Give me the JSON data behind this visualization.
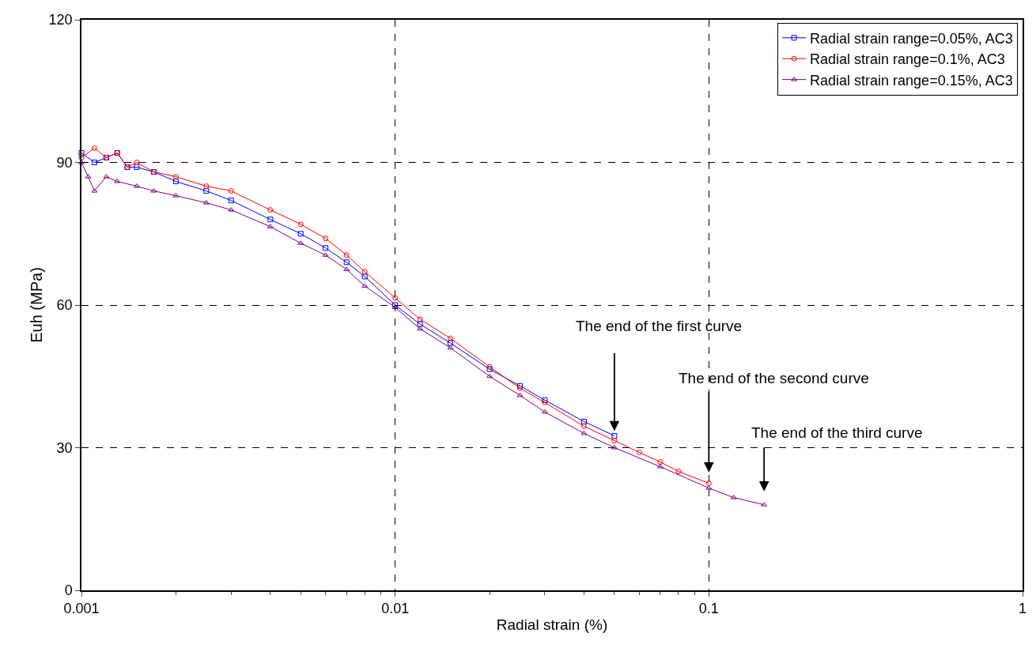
{
  "chart_data": {
    "type": "line",
    "xlabel": "Radial strain (%)",
    "ylabel": "Euh (MPa)",
    "log": "x",
    "xlim": [
      0.001,
      1
    ],
    "xticks": [
      {
        "value": 0.001,
        "label": "0.001"
      },
      {
        "value": 0.01,
        "label": "0.01"
      },
      {
        "value": 0.1,
        "label": "0.1"
      },
      {
        "value": 1,
        "label": "1"
      }
    ],
    "ylim": [
      0,
      120
    ],
    "yticks": [
      0,
      30,
      60,
      90,
      120
    ],
    "grid": true,
    "legend": "top right",
    "series": [
      {
        "name": "Radial strain range=0.05%, AC3",
        "color": "#0000ff",
        "marker": "square",
        "x": [
          0.001,
          0.0011,
          0.0012,
          0.0013,
          0.0014,
          0.0015,
          0.0017,
          0.002,
          0.0025,
          0.003,
          0.004,
          0.005,
          0.006,
          0.007,
          0.008,
          0.01,
          0.012,
          0.015,
          0.02,
          0.025,
          0.03,
          0.04,
          0.05
        ],
        "values": [
          92,
          90,
          91,
          92,
          89,
          89,
          88,
          86,
          84,
          82,
          78,
          75,
          72,
          69,
          66,
          60,
          56,
          52,
          46.5,
          43,
          40,
          35.5,
          32.5
        ]
      },
      {
        "name": "Radial strain range=0.1%, AC3",
        "color": "#ff0000",
        "marker": "circle",
        "x": [
          0.001,
          0.0011,
          0.0012,
          0.0013,
          0.0014,
          0.0015,
          0.0017,
          0.002,
          0.0025,
          0.003,
          0.004,
          0.005,
          0.006,
          0.007,
          0.008,
          0.01,
          0.012,
          0.015,
          0.02,
          0.025,
          0.03,
          0.04,
          0.05,
          0.06,
          0.07,
          0.08,
          0.1
        ],
        "values": [
          91,
          93,
          91,
          92,
          89,
          90,
          88,
          87,
          85,
          84,
          80,
          77,
          74,
          70.5,
          67,
          61.5,
          57,
          53,
          47,
          42.5,
          39.5,
          34.5,
          31.5,
          29,
          27,
          25,
          22.5
        ]
      },
      {
        "name": "Radial strain range=0.15%, AC3",
        "color": "#800080",
        "marker": "triangle",
        "x": [
          0.001,
          0.00105,
          0.0011,
          0.0012,
          0.0013,
          0.0015,
          0.0017,
          0.002,
          0.0025,
          0.003,
          0.004,
          0.005,
          0.006,
          0.007,
          0.008,
          0.01,
          0.012,
          0.015,
          0.02,
          0.025,
          0.03,
          0.04,
          0.05,
          0.07,
          0.1,
          0.12,
          0.15
        ],
        "values": [
          90,
          87,
          84,
          87,
          86,
          85,
          84,
          83,
          81.5,
          80,
          76.5,
          73,
          70.5,
          67.5,
          64,
          59.5,
          55,
          51,
          45,
          41,
          37.5,
          33,
          30,
          26,
          21.5,
          19.5,
          18
        ]
      }
    ],
    "annotations": [
      {
        "text": "The end of the first curve",
        "x": 0.05,
        "y": 32.5
      },
      {
        "text": "The end of the second curve",
        "x": 0.1,
        "y": 22.5
      },
      {
        "text": "The end of the third curve",
        "x": 0.15,
        "y": 18
      }
    ]
  }
}
